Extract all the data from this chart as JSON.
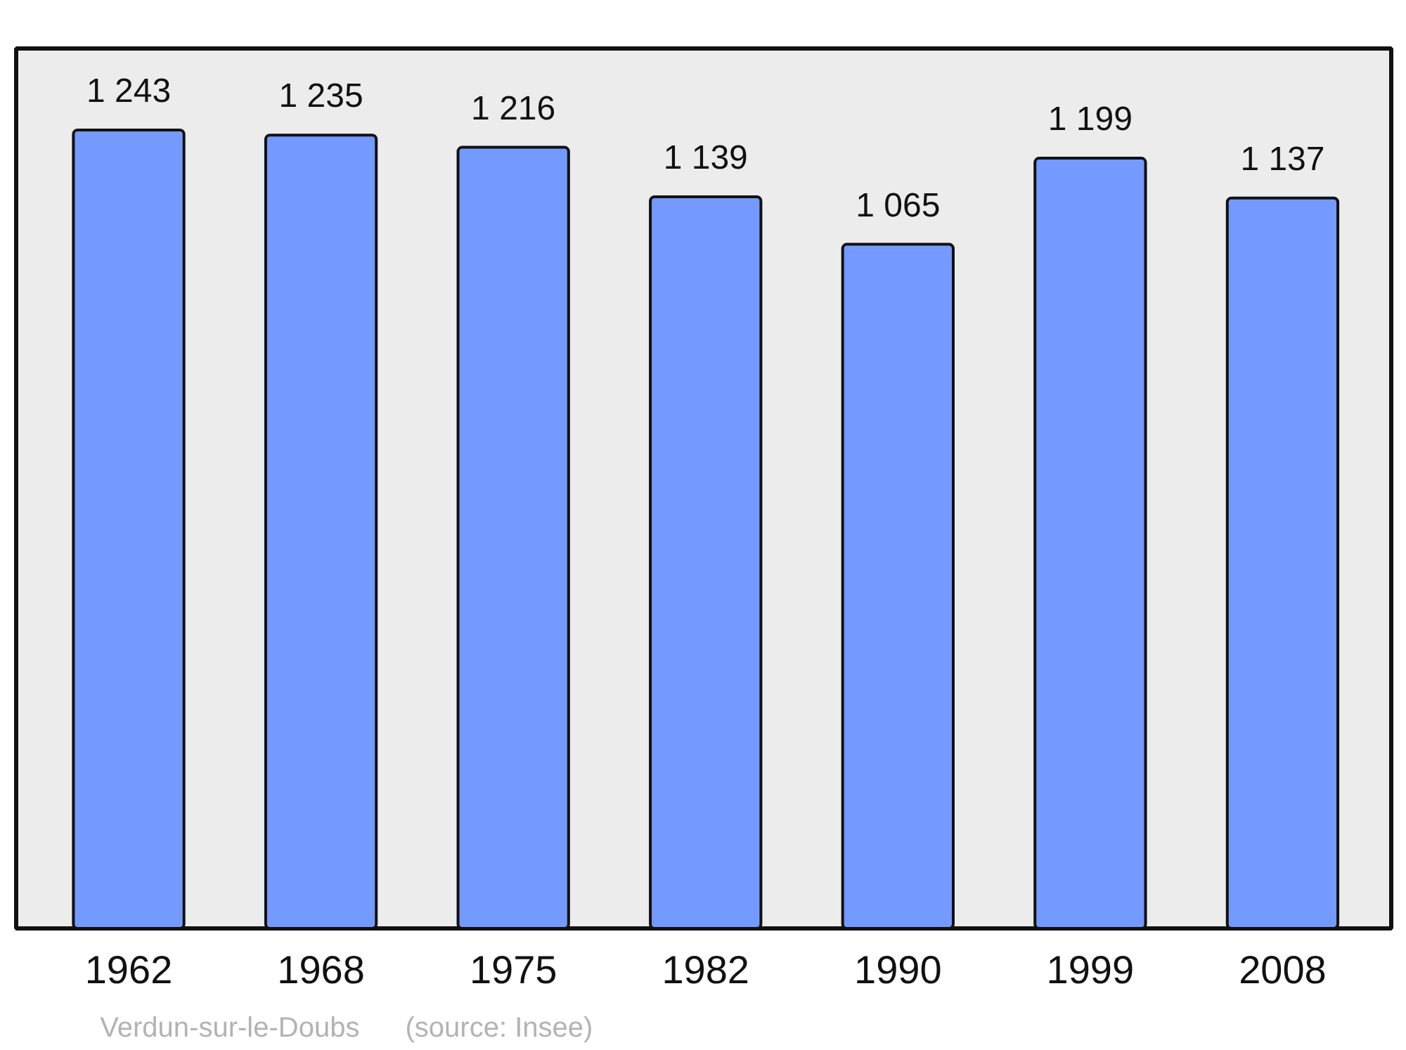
{
  "chart_data": {
    "type": "bar",
    "categories": [
      "1962",
      "1968",
      "1975",
      "1982",
      "1990",
      "1999",
      "2008"
    ],
    "values": [
      1243,
      1235,
      1216,
      1139,
      1065,
      1199,
      1137
    ],
    "color": "#7499ff",
    "value_labels": [
      "1 243",
      "1 235",
      "1 216",
      "1 139",
      "1 065",
      "1 199",
      "1 137"
    ],
    "annotations": [
      "Verdun-sur-le-Doubs",
      "(source: Insee)"
    ]
  }
}
